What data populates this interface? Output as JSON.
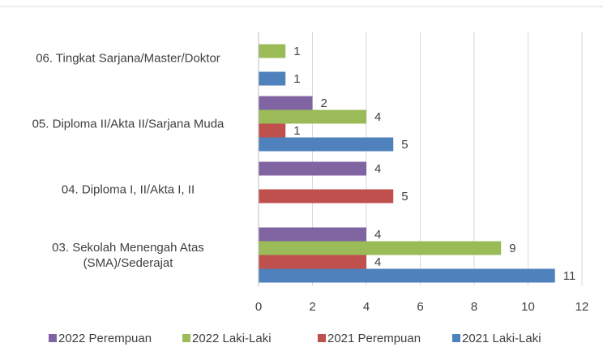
{
  "chart_data": {
    "type": "bar",
    "orientation": "horizontal",
    "categories": [
      "03. Sekolah Menengah Atas (SMA)/Sederajat",
      "04. Diploma I, II/Akta I, II",
      "05. Diploma II/Akta II/Sarjana Muda",
      "06. Tingkat Sarjana/Master/Doktor"
    ],
    "series": [
      {
        "name": "2022 Perempuan",
        "color": "#8064a2",
        "values": [
          4,
          4,
          2,
          null
        ]
      },
      {
        "name": "2022 Laki-Laki",
        "color": "#9bbb59",
        "values": [
          9,
          null,
          4,
          1
        ]
      },
      {
        "name": "2021 Perempuan",
        "color": "#c0504d",
        "values": [
          4,
          5,
          1,
          null
        ]
      },
      {
        "name": "2021 Laki-Laki",
        "color": "#4f81bd",
        "values": [
          11,
          null,
          5,
          1
        ]
      }
    ],
    "xlim": [
      0,
      12
    ],
    "xticks": [
      0,
      2,
      4,
      6,
      8,
      10,
      12
    ],
    "grid": true,
    "legend": "bottom"
  }
}
